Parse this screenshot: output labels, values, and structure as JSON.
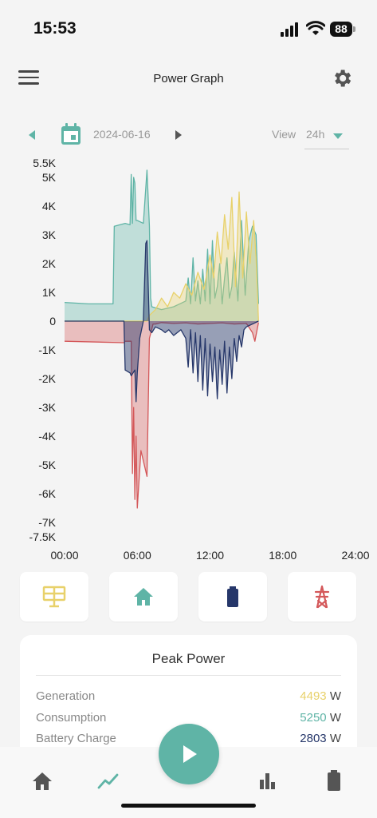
{
  "status_bar": {
    "time": "15:53",
    "battery": "88"
  },
  "header": {
    "title": "Power Graph"
  },
  "date_nav": {
    "date": "2024-06-16",
    "view_label": "View",
    "view_value": "24h"
  },
  "colors": {
    "accent": "#5fb4a6",
    "generation": "#e8d16a",
    "consumption": "#5fb4a6",
    "battery": "#26376a",
    "grid": "#d4585a"
  },
  "chart_data": {
    "type": "area",
    "xlabel": "",
    "ylabel": "",
    "x_ticks": [
      "00:00",
      "06:00",
      "12:00",
      "18:00",
      "24:00"
    ],
    "y_ticks": [
      "5.5K",
      "5K",
      "4K",
      "3K",
      "2K",
      "1K",
      "0",
      "-1K",
      "-2K",
      "-3K",
      "-4K",
      "-5K",
      "-6K",
      "-7K",
      "-7.5K"
    ],
    "xlim": [
      0,
      24
    ],
    "ylim": [
      -7500,
      5500
    ],
    "series": [
      {
        "key": "consumption",
        "x": [
          0,
          2,
          4,
          4.1,
          5,
          5.4,
          5.5,
          5.6,
          5.7,
          5.8,
          5.9,
          6.0,
          6.5,
          6.8,
          7.0,
          7.1,
          7.2,
          8,
          9,
          9.5,
          10,
          10.2,
          10.4,
          10.6,
          10.8,
          11,
          11.2,
          11.4,
          11.6,
          11.8,
          12,
          12.2,
          12.4,
          12.6,
          12.8,
          13,
          13.2,
          13.4,
          13.6,
          13.8,
          14,
          14.3,
          14.6,
          14.9,
          15.2,
          15.5,
          15.8,
          16
        ],
        "y": [
          650,
          600,
          600,
          3300,
          3400,
          3350,
          5100,
          3400,
          5000,
          4800,
          3500,
          3500,
          3400,
          5250,
          3300,
          800,
          500,
          400,
          500,
          600,
          700,
          1500,
          600,
          2200,
          700,
          1400,
          600,
          1800,
          700,
          2500,
          600,
          2800,
          800,
          1200,
          2000,
          600,
          1500,
          2200,
          800,
          1200,
          2400,
          700,
          3500,
          900,
          2800,
          3300,
          3000,
          600
        ]
      },
      {
        "key": "generation",
        "x": [
          0,
          6.8,
          7,
          7.5,
          8,
          8.5,
          9,
          9.5,
          10,
          10.5,
          11,
          11.5,
          12,
          12.3,
          12.6,
          12.9,
          13.2,
          13.5,
          13.8,
          14.1,
          14.4,
          14.7,
          15,
          15.3,
          15.6,
          15.8,
          16
        ],
        "y": [
          0,
          0,
          200,
          400,
          800,
          500,
          1000,
          800,
          1300,
          900,
          1700,
          1100,
          2300,
          1500,
          3100,
          2000,
          3700,
          2500,
          4300,
          1200,
          4493,
          1500,
          3800,
          2000,
          3500,
          2200,
          0
        ]
      },
      {
        "key": "battery",
        "x": [
          0,
          4.9,
          5,
          5.4,
          5.5,
          5.8,
          5.9,
          6.0,
          6.2,
          6.5,
          6.7,
          6.8,
          7.0,
          7.2,
          7.5,
          8,
          8.3,
          8.6,
          9,
          9.3,
          9.6,
          10,
          10.2,
          10.4,
          10.6,
          10.8,
          11,
          11.2,
          11.4,
          11.6,
          11.8,
          12,
          12.2,
          12.4,
          12.6,
          12.8,
          13,
          13.2,
          13.4,
          13.6,
          13.8,
          14,
          14.2,
          14.4,
          14.6,
          14.8,
          15,
          16
        ],
        "y": [
          0,
          0,
          -1700,
          -1800,
          -1900,
          -1700,
          -2803,
          -1800,
          -600,
          0,
          2700,
          2800,
          -300,
          -400,
          -200,
          -300,
          -400,
          -300,
          -500,
          -400,
          -300,
          -600,
          -1600,
          -300,
          -1800,
          -400,
          -2100,
          -500,
          -2400,
          -600,
          -2600,
          -800,
          -2100,
          -900,
          -2700,
          -1000,
          -2200,
          -700,
          -2500,
          -900,
          -2000,
          -600,
          -1400,
          -500,
          -900,
          -300,
          -200,
          0
        ]
      },
      {
        "key": "grid",
        "x": [
          0,
          4.9,
          5,
          5.5,
          5.6,
          5.7,
          5.8,
          5.9,
          6.0,
          6.3,
          6.8,
          7.0,
          7.3,
          7.5,
          8,
          9,
          10,
          11,
          12,
          13,
          14,
          15,
          15.5,
          15.7,
          16
        ],
        "y": [
          -700,
          -750,
          -700,
          -700,
          -5300,
          -3000,
          -6200,
          -4000,
          -6500,
          -4500,
          -5400,
          -600,
          -100,
          -100,
          -50,
          -80,
          -60,
          -100,
          -80,
          -60,
          -100,
          -80,
          -400,
          -700,
          -50
        ]
      }
    ]
  },
  "modes": [
    {
      "name": "solar-icon"
    },
    {
      "name": "home-icon"
    },
    {
      "name": "battery-icon"
    },
    {
      "name": "grid-tower-icon"
    }
  ],
  "peak_power": {
    "title": "Peak Power",
    "rows": [
      {
        "label": "Generation",
        "value": "4493",
        "unit": "W"
      },
      {
        "label": "Consumption",
        "value": "5250",
        "unit": "W"
      },
      {
        "label": "Battery Charge",
        "value": "2803",
        "unit": "W"
      }
    ]
  }
}
